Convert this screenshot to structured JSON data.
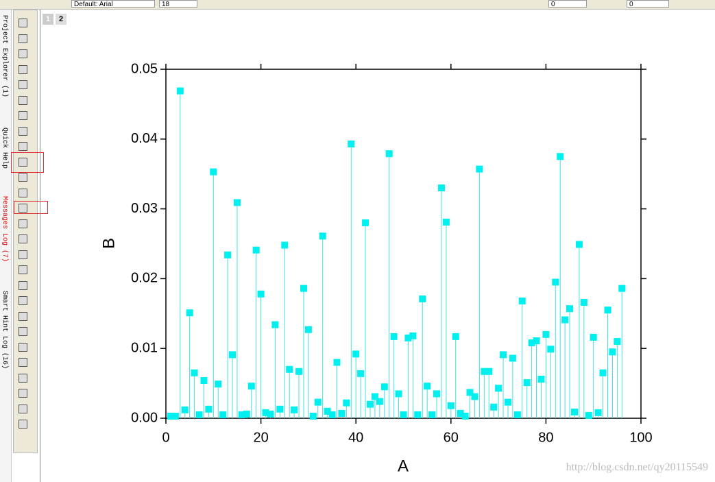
{
  "ui": {
    "font_name": "Default: Arial",
    "font_size": "18",
    "line_width_a": "0",
    "line_width_b": "0",
    "page_tabs": [
      "1",
      "2"
    ],
    "side_tabs": [
      "Project Explorer (1)",
      "Quick Help",
      "Messages Log (7)",
      "Smart Hint Log (16)"
    ],
    "watermark": "http://blog.csdn.net/qy20115549"
  },
  "chart_data": {
    "type": "scatter",
    "drop_lines": true,
    "xlabel": "A",
    "ylabel": "B",
    "color": "#00f0f0",
    "stem_color": "#40e0e0",
    "x": [
      1,
      2,
      3,
      4,
      5,
      6,
      7,
      8,
      9,
      10,
      11,
      12,
      13,
      14,
      15,
      16,
      17,
      18,
      19,
      20,
      21,
      22,
      23,
      24,
      25,
      26,
      27,
      28,
      29,
      30,
      31,
      32,
      33,
      34,
      35,
      36,
      37,
      38,
      39,
      40,
      41,
      42,
      43,
      44,
      45,
      46,
      47,
      48,
      49,
      50,
      51,
      52,
      53,
      54,
      55,
      56,
      57,
      58,
      59,
      60,
      61,
      62,
      63,
      64,
      65,
      66,
      67,
      68,
      69,
      70,
      71,
      72,
      73,
      74,
      75,
      76,
      77,
      78,
      79,
      80,
      81,
      82,
      83,
      84,
      85,
      86,
      87,
      88,
      89,
      90,
      91,
      92,
      93,
      94,
      95,
      96
    ],
    "values": [
      0.0003,
      0.0003,
      0.0469,
      0.0012,
      0.0151,
      0.0065,
      0.0005,
      0.0054,
      0.0013,
      0.0353,
      0.0049,
      0.0005,
      0.0234,
      0.0091,
      0.0309,
      0.0005,
      0.0006,
      0.0046,
      0.0241,
      0.0178,
      0.0008,
      0.0006,
      0.0134,
      0.0013,
      0.0248,
      0.007,
      0.0012,
      0.0067,
      0.0186,
      0.0127,
      0.0003,
      0.0023,
      0.0261,
      0.001,
      0.0005,
      0.008,
      0.0007,
      0.0022,
      0.0393,
      0.0092,
      0.0064,
      0.028,
      0.002,
      0.0031,
      0.0024,
      0.0045,
      0.0379,
      0.0117,
      0.0035,
      0.0005,
      0.0115,
      0.0118,
      0.0005,
      0.0171,
      0.0046,
      0.0005,
      0.0035,
      0.033,
      0.0281,
      0.0018,
      0.0117,
      0.0007,
      0.0003,
      0.0037,
      0.0031,
      0.0357,
      0.0067,
      0.0067,
      0.0016,
      0.0043,
      0.0091,
      0.0023,
      0.0086,
      0.0005,
      0.0168,
      0.0051,
      0.0108,
      0.0111,
      0.0056,
      0.012,
      0.0099,
      0.0195,
      0.0375,
      0.0141,
      0.0157,
      0.0009,
      0.0249,
      0.0166,
      0.0004,
      0.0116,
      0.0008,
      0.0065,
      0.0155,
      0.0095,
      0.011,
      0.0186
    ],
    "xlim": [
      0,
      100
    ],
    "xticks": [
      0,
      20,
      40,
      60,
      80,
      100
    ],
    "ylim": [
      0,
      0.05
    ],
    "yticks": [
      {
        "value": 0,
        "label": "0.00"
      },
      0.01,
      0.02,
      0.03,
      0.04,
      0.05
    ]
  }
}
